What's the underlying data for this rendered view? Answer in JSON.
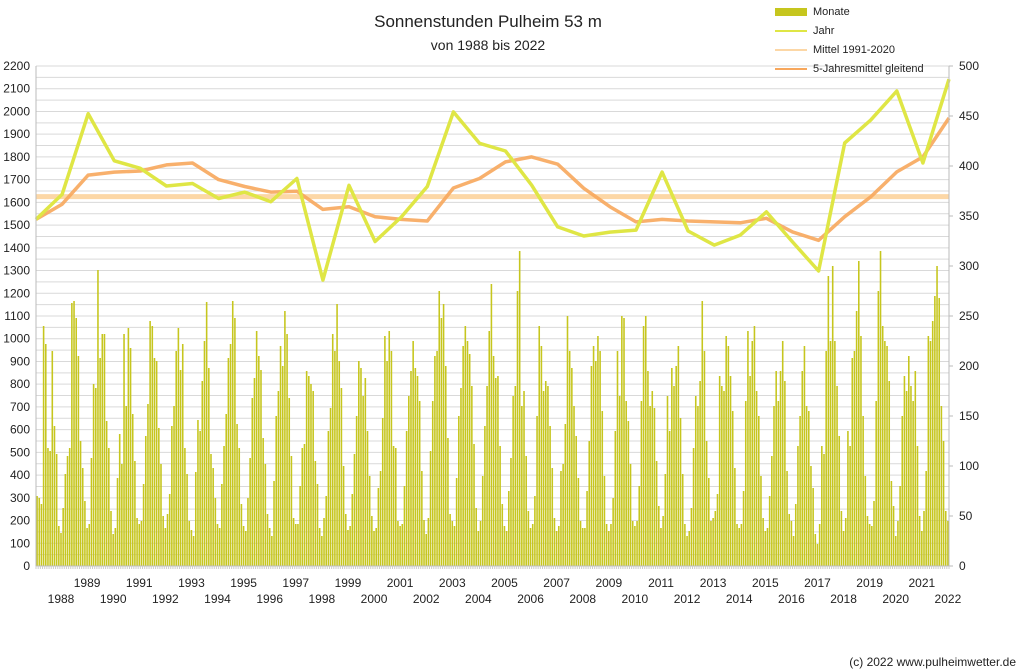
{
  "chart_data": {
    "type": "bar+line",
    "title": "Sonnenstunden Pulheim 53 m",
    "subtitle": "von 1988 bis 2022",
    "copyright": "(c) 2022 www.pulheimwetter.de",
    "left_axis": {
      "range": [
        0,
        2200
      ],
      "ticks": [
        "0",
        "100",
        "200",
        "300",
        "400",
        "500",
        "600",
        "700",
        "800",
        "900",
        "1000",
        "1100",
        "1200",
        "1300",
        "1400",
        "1500",
        "1600",
        "1700",
        "1800",
        "1900",
        "2000",
        "2100",
        "2200"
      ]
    },
    "right_axis": {
      "range": [
        0,
        500
      ],
      "ticks": [
        "0",
        "50",
        "100",
        "150",
        "200",
        "250",
        "300",
        "350",
        "400",
        "450",
        "500"
      ]
    },
    "x_labels_upper": [
      "1989",
      "1991",
      "1993",
      "1995",
      "1997",
      "1999",
      "2001",
      "2003",
      "2005",
      "2007",
      "2009",
      "2011",
      "2013",
      "2015",
      "2017",
      "2019",
      "2021"
    ],
    "x_labels_lower": [
      "1988",
      "1990",
      "1992",
      "1994",
      "1996",
      "1998",
      "2000",
      "2002",
      "2004",
      "2006",
      "2008",
      "2010",
      "2012",
      "2014",
      "2016",
      "2018",
      "2020",
      "2022"
    ],
    "grid": true,
    "legend": {
      "placement": "top-right",
      "items": [
        {
          "label": "Monate",
          "color": "#c6c61e",
          "kind": "bar"
        },
        {
          "label": "Jahr",
          "color": "#dfe645",
          "kind": "line"
        },
        {
          "label": "Mittel 1991-2020",
          "color": "#fcd7a6",
          "kind": "line"
        },
        {
          "label": "5-Jahresmittel gleitend",
          "color": "#f7a75c",
          "kind": "line"
        }
      ]
    },
    "monate": {
      "axis": "right",
      "unit": "hours per month",
      "years": [
        {
          "year": 1988,
          "values": [
            70,
            68,
            62,
            240,
            222,
            118,
            115,
            215,
            140,
            112,
            40,
            33
          ]
        },
        {
          "year": 1989,
          "values": [
            58,
            92,
            110,
            118,
            263,
            265,
            248,
            210,
            125,
            98,
            65,
            38
          ]
        },
        {
          "year": 1990,
          "values": [
            42,
            108,
            182,
            178,
            296,
            208,
            232,
            232,
            145,
            118,
            55,
            32
          ]
        },
        {
          "year": 1991,
          "values": [
            38,
            88,
            132,
            102,
            232,
            160,
            238,
            218,
            152,
            105,
            48,
            42
          ]
        },
        {
          "year": 1992,
          "values": [
            45,
            82,
            130,
            162,
            245,
            240,
            208,
            205,
            138,
            102,
            50,
            38
          ]
        },
        {
          "year": 1993,
          "values": [
            52,
            72,
            140,
            160,
            215,
            238,
            196,
            222,
            118,
            92,
            45,
            36
          ]
        },
        {
          "year": 1994,
          "values": [
            30,
            94,
            146,
            135,
            185,
            225,
            264,
            198,
            112,
            98,
            68,
            42
          ]
        },
        {
          "year": 1995,
          "values": [
            38,
            82,
            120,
            152,
            208,
            222,
            265,
            248,
            142,
            118,
            62,
            40
          ]
        },
        {
          "year": 1996,
          "values": [
            35,
            68,
            108,
            168,
            188,
            235,
            210,
            196,
            128,
            102,
            52,
            38
          ]
        },
        {
          "year": 1997,
          "values": [
            30,
            85,
            150,
            175,
            220,
            200,
            255,
            232,
            168,
            110,
            48,
            42
          ]
        },
        {
          "year": 1998,
          "values": [
            42,
            80,
            118,
            122,
            195,
            190,
            182,
            175,
            105,
            82,
            38,
            30
          ]
        },
        {
          "year": 1999,
          "values": [
            48,
            70,
            135,
            158,
            232,
            215,
            262,
            205,
            178,
            100,
            52,
            36
          ]
        },
        {
          "year": 2000,
          "values": [
            40,
            72,
            112,
            150,
            205,
            198,
            170,
            188,
            135,
            90,
            50,
            35
          ]
        },
        {
          "year": 2001,
          "values": [
            38,
            78,
            95,
            148,
            230,
            205,
            235,
            215,
            120,
            118,
            45,
            40
          ]
        },
        {
          "year": 2002,
          "values": [
            42,
            80,
            135,
            170,
            195,
            225,
            198,
            190,
            165,
            95,
            46,
            32
          ]
        },
        {
          "year": 2003,
          "values": [
            48,
            115,
            165,
            210,
            215,
            275,
            248,
            262,
            200,
            128,
            52,
            45
          ]
        },
        {
          "year": 2004,
          "values": [
            40,
            88,
            150,
            178,
            220,
            240,
            225,
            212,
            180,
            122,
            58,
            35
          ]
        },
        {
          "year": 2005,
          "values": [
            45,
            90,
            140,
            180,
            235,
            282,
            210,
            188,
            190,
            120,
            62,
            40
          ]
        },
        {
          "year": 2006,
          "values": [
            35,
            75,
            108,
            170,
            180,
            275,
            315,
            160,
            175,
            110,
            55,
            38
          ]
        },
        {
          "year": 2007,
          "values": [
            42,
            70,
            150,
            240,
            220,
            175,
            185,
            180,
            140,
            98,
            48,
            35
          ]
        },
        {
          "year": 2008,
          "values": [
            40,
            95,
            102,
            142,
            250,
            215,
            198,
            160,
            130,
            88,
            45,
            38
          ]
        },
        {
          "year": 2009,
          "values": [
            38,
            75,
            125,
            200,
            220,
            205,
            230,
            215,
            155,
            90,
            42,
            35
          ]
        },
        {
          "year": 2010,
          "values": [
            42,
            68,
            135,
            215,
            170,
            250,
            248,
            165,
            145,
            102,
            45,
            40
          ]
        },
        {
          "year": 2011,
          "values": [
            45,
            80,
            165,
            240,
            250,
            195,
            160,
            175,
            158,
            105,
            60,
            38
          ]
        },
        {
          "year": 2012,
          "values": [
            50,
            92,
            170,
            135,
            198,
            180,
            200,
            220,
            148,
            92,
            42,
            30
          ]
        },
        {
          "year": 2013,
          "values": [
            35,
            58,
            118,
            170,
            160,
            185,
            265,
            215,
            125,
            88,
            45,
            48
          ]
        },
        {
          "year": 2014,
          "values": [
            55,
            72,
            190,
            180,
            175,
            230,
            220,
            190,
            155,
            98,
            42,
            38
          ]
        },
        {
          "year": 2015,
          "values": [
            42,
            75,
            165,
            235,
            190,
            225,
            240,
            175,
            150,
            90,
            48,
            35
          ]
        },
        {
          "year": 2016,
          "values": [
            38,
            70,
            110,
            160,
            195,
            165,
            195,
            225,
            185,
            95,
            52,
            45
          ]
        },
        {
          "year": 2017,
          "values": [
            30,
            62,
            120,
            150,
            195,
            220,
            160,
            155,
            100,
            78,
            32,
            22
          ]
        },
        {
          "year": 2018,
          "values": [
            42,
            120,
            112,
            215,
            290,
            225,
            300,
            225,
            180,
            130,
            55,
            35
          ]
        },
        {
          "year": 2019,
          "values": [
            48,
            135,
            120,
            208,
            215,
            255,
            305,
            230,
            150,
            90,
            50,
            42
          ]
        },
        {
          "year": 2020,
          "values": [
            40,
            65,
            165,
            275,
            315,
            240,
            225,
            220,
            185,
            85,
            60,
            30
          ]
        },
        {
          "year": 2021,
          "values": [
            45,
            80,
            150,
            190,
            175,
            210,
            180,
            165,
            195,
            120,
            50,
            35
          ]
        },
        {
          "year": 2022,
          "values": [
            55,
            95,
            230,
            225,
            245,
            270,
            300,
            268,
            160,
            125,
            55,
            45
          ]
        }
      ]
    },
    "jahr": {
      "axis": "left",
      "unit": "hours per year",
      "x_years": [
        1987,
        1988,
        1989,
        1990,
        1991,
        1992,
        1993,
        1994,
        1995,
        1996,
        1997,
        1998,
        1999,
        2000,
        2001,
        2002,
        2003,
        2004,
        2005,
        2006,
        2007,
        2008,
        2009,
        2010,
        2011,
        2012,
        2013,
        2014,
        2015,
        2016,
        2017,
        2018,
        2019,
        2020,
        2021,
        2022
      ],
      "values": [
        1525,
        1635,
        1990,
        1783,
        1750,
        1672,
        1683,
        1617,
        1645,
        1603,
        1705,
        1258,
        1675,
        1428,
        1535,
        1670,
        1998,
        1860,
        1826,
        1676,
        1492,
        1452,
        1469,
        1478,
        1733,
        1474,
        1412,
        1456,
        1558,
        1426,
        1298,
        1861,
        1962,
        2090,
        1773,
        2142
      ]
    },
    "mittel_1991_2020": {
      "axis": "left",
      "value": 1625
    },
    "fuenfjahresmittel": {
      "axis": "left",
      "values": [
        1525,
        1592,
        1720,
        1733,
        1738,
        1765,
        1773,
        1700,
        1670,
        1645,
        1649,
        1569,
        1581,
        1537,
        1525,
        1518,
        1663,
        1705,
        1778,
        1800,
        1768,
        1662,
        1581,
        1514,
        1525,
        1518,
        1514,
        1510,
        1530,
        1470,
        1433,
        1537,
        1624,
        1734,
        1800,
        1971
      ]
    }
  }
}
